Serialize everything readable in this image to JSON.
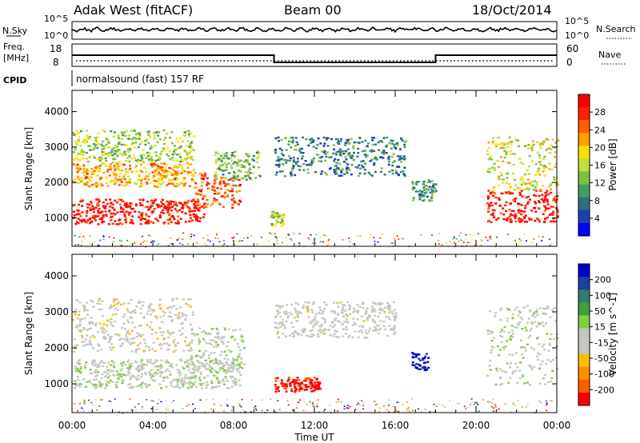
{
  "header": {
    "station": "Adak West (fitACF)",
    "beam": "Beam 00",
    "date": "18/Oct/2014"
  },
  "strip_panels": {
    "nsky_label": "N.Sky",
    "nsky_ticks": [
      "10^5",
      "10^0"
    ],
    "nsearch_label": "N.Search",
    "nsearch_ticks": [
      "10^5",
      "10^0"
    ],
    "freq_label_1": "Freq.",
    "freq_label_2": "[MHz]",
    "freq_ticks": [
      "18",
      "8"
    ],
    "nave_label": "Nave",
    "nave_ticks": [
      "60",
      "0"
    ],
    "cpid_label": "CPID",
    "cpid_text": "normalsound (fast) 157 RF"
  },
  "colors": {
    "power_scale": [
      "#0000ff",
      "#1f3fb0",
      "#2f6f80",
      "#3f9f5f",
      "#7fbf3f",
      "#bfdf3f",
      "#ffdf00",
      "#ffa000",
      "#ff6000",
      "#ff2000",
      "#ff0000"
    ],
    "velocity_scale": [
      "#0000cc",
      "#1f3fa0",
      "#2f7f6f",
      "#3fa03f",
      "#7fcf3f",
      "#c8c8c0",
      "#c8c8c0",
      "#ffbf00",
      "#ff8f00",
      "#ff5f00",
      "#ff0000"
    ],
    "freq_line": "#000000"
  },
  "chart_data": [
    {
      "type": "heatmap",
      "name": "Power",
      "ylabel": "Slant Range [km]",
      "xlabel": "Time UT",
      "xlim": [
        "00:00",
        "24:00"
      ],
      "ylim": [
        200,
        4600
      ],
      "x_ticks": [
        "00:00",
        "04:00",
        "08:00",
        "12:00",
        "16:00",
        "20:00",
        "00:00"
      ],
      "y_ticks": [
        1000,
        2000,
        3000,
        4000
      ],
      "colorbar_label": "Power [dB]",
      "colorbar_ticks": [
        "4",
        "8",
        "12",
        "16",
        "20",
        "24",
        "28"
      ],
      "colorbar_range": [
        0,
        30
      ],
      "regions": [
        {
          "t0": 0.0,
          "t1": 6.5,
          "r0": 850,
          "r1": 1550,
          "value": 28
        },
        {
          "t0": 6.0,
          "t1": 8.3,
          "r0": 1300,
          "r1": 2300,
          "value": 24
        },
        {
          "t0": 0.0,
          "t1": 6.0,
          "r0": 1900,
          "r1": 2600,
          "value": 20
        },
        {
          "t0": 0.0,
          "t1": 6.0,
          "r0": 2600,
          "r1": 3500,
          "value": 14
        },
        {
          "t0": 7.0,
          "t1": 9.3,
          "r0": 2100,
          "r1": 2900,
          "value": 12
        },
        {
          "t0": 10.0,
          "t1": 16.5,
          "r0": 2200,
          "r1": 3300,
          "value": 8
        },
        {
          "t0": 16.8,
          "t1": 18.0,
          "r0": 1500,
          "r1": 2100,
          "value": 8
        },
        {
          "t0": 9.8,
          "t1": 10.5,
          "r0": 800,
          "r1": 1200,
          "value": 14
        },
        {
          "t0": 20.5,
          "t1": 24.0,
          "r0": 900,
          "r1": 1800,
          "value": 28
        },
        {
          "t0": 20.5,
          "t1": 24.0,
          "r0": 1800,
          "r1": 3300,
          "value": 16
        }
      ]
    },
    {
      "type": "heatmap",
      "name": "Velocity",
      "ylabel": "Slant Range [km]",
      "xlabel": "Time UT",
      "xlim": [
        "00:00",
        "24:00"
      ],
      "ylim": [
        200,
        4600
      ],
      "x_ticks": [
        "00:00",
        "04:00",
        "08:00",
        "12:00",
        "16:00",
        "20:00",
        "00:00"
      ],
      "y_ticks": [
        1000,
        2000,
        3000,
        4000
      ],
      "colorbar_label": "Velocity [m s^-1]",
      "colorbar_ticks": [
        "200",
        "100",
        "50",
        "15",
        "-15",
        "-50",
        "-100",
        "-200"
      ],
      "colorbar_range": [
        -250,
        250
      ],
      "regions": [
        {
          "t0": 0.0,
          "t1": 8.3,
          "r0": 900,
          "r1": 1700,
          "value": 0
        },
        {
          "t0": 5.8,
          "t1": 8.5,
          "r0": 1400,
          "r1": 2600,
          "value": 0
        },
        {
          "t0": 0.0,
          "t1": 6.0,
          "r0": 1900,
          "r1": 3400,
          "value": -40
        },
        {
          "t0": 10.0,
          "t1": 12.3,
          "r0": 800,
          "r1": 1200,
          "value": -220
        },
        {
          "t0": 10.0,
          "t1": 16.0,
          "r0": 2300,
          "r1": 3300,
          "value": -30
        },
        {
          "t0": 16.8,
          "t1": 17.6,
          "r0": 1400,
          "r1": 1900,
          "value": 220
        },
        {
          "t0": 20.5,
          "t1": 24.0,
          "r0": 1000,
          "r1": 3200,
          "value": 0
        }
      ]
    }
  ]
}
